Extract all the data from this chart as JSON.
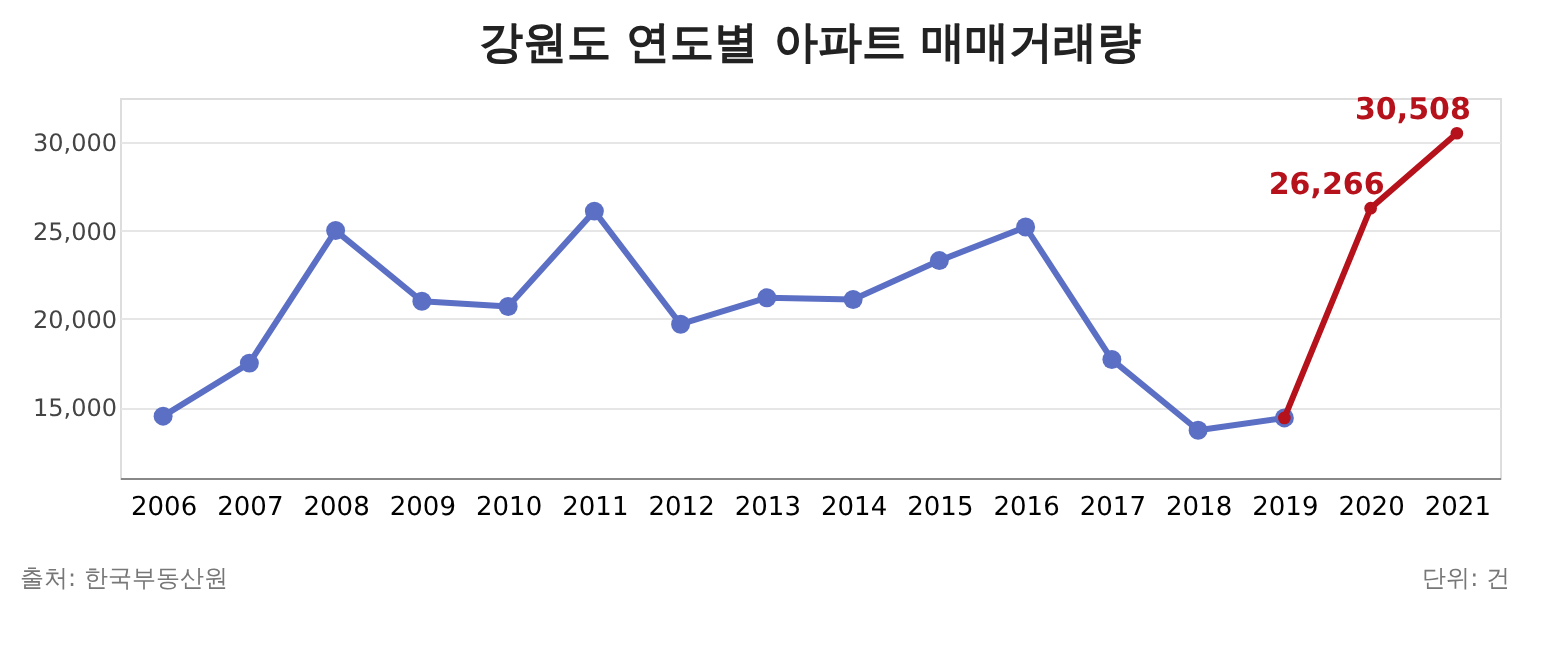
{
  "chart_data": {
    "type": "line",
    "title": "강원도 연도별 아파트 매매거래량",
    "categories": [
      "2006",
      "2007",
      "2008",
      "2009",
      "2010",
      "2011",
      "2012",
      "2013",
      "2014",
      "2015",
      "2016",
      "2017",
      "2018",
      "2019",
      "2020",
      "2021"
    ],
    "series": [
      {
        "color": "#5b6fc4",
        "values": [
          14500,
          17500,
          25000,
          21000,
          20700,
          26100,
          19700,
          21200,
          21100,
          23300,
          25200,
          17700,
          13700,
          14400,
          null,
          null
        ]
      },
      {
        "color": "#b5121b",
        "values": [
          null,
          null,
          null,
          null,
          null,
          null,
          null,
          null,
          null,
          null,
          null,
          null,
          null,
          14400,
          26266,
          30508
        ],
        "value_labels": [
          null,
          null,
          null,
          null,
          null,
          null,
          null,
          null,
          null,
          null,
          null,
          null,
          null,
          null,
          "26,266",
          "30,508"
        ]
      }
    ],
    "ylim": [
      11000,
      32500
    ],
    "yticks": [
      {
        "value": 15000,
        "label": "15,000"
      },
      {
        "value": 20000,
        "label": "20,000"
      },
      {
        "value": 25000,
        "label": "25,000"
      },
      {
        "value": 30000,
        "label": "30,000"
      }
    ],
    "grid": "y",
    "marker": "circle",
    "line_style": "solid",
    "annotations": [
      "출처: 한국부동산원",
      "단위: 건"
    ]
  }
}
